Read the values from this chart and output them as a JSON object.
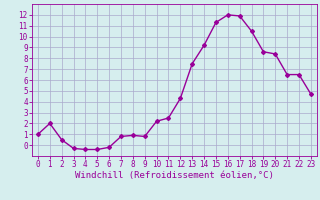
{
  "x": [
    0,
    1,
    2,
    3,
    4,
    5,
    6,
    7,
    8,
    9,
    10,
    11,
    12,
    13,
    14,
    15,
    16,
    17,
    18,
    19,
    20,
    21,
    22,
    23
  ],
  "y": [
    1.0,
    2.0,
    0.5,
    -0.3,
    -0.4,
    -0.4,
    -0.2,
    0.8,
    0.9,
    0.8,
    2.2,
    2.5,
    4.3,
    7.5,
    9.2,
    11.3,
    12.0,
    11.9,
    10.5,
    8.6,
    8.4,
    6.5,
    6.5,
    4.7
  ],
  "line_color": "#990099",
  "marker": "D",
  "marker_size": 2,
  "bg_color": "#d6eeee",
  "grid_color": "#aaaacc",
  "xlabel": "Windchill (Refroidissement éolien,°C)",
  "ylim": [
    -1,
    13
  ],
  "xlim": [
    -0.5,
    23.5
  ],
  "yticks": [
    0,
    1,
    2,
    3,
    4,
    5,
    6,
    7,
    8,
    9,
    10,
    11,
    12
  ],
  "xticks": [
    0,
    1,
    2,
    3,
    4,
    5,
    6,
    7,
    8,
    9,
    10,
    11,
    12,
    13,
    14,
    15,
    16,
    17,
    18,
    19,
    20,
    21,
    22,
    23
  ],
  "xlabel_fontsize": 6.5,
  "tick_fontsize": 5.5,
  "line_width": 1.0
}
